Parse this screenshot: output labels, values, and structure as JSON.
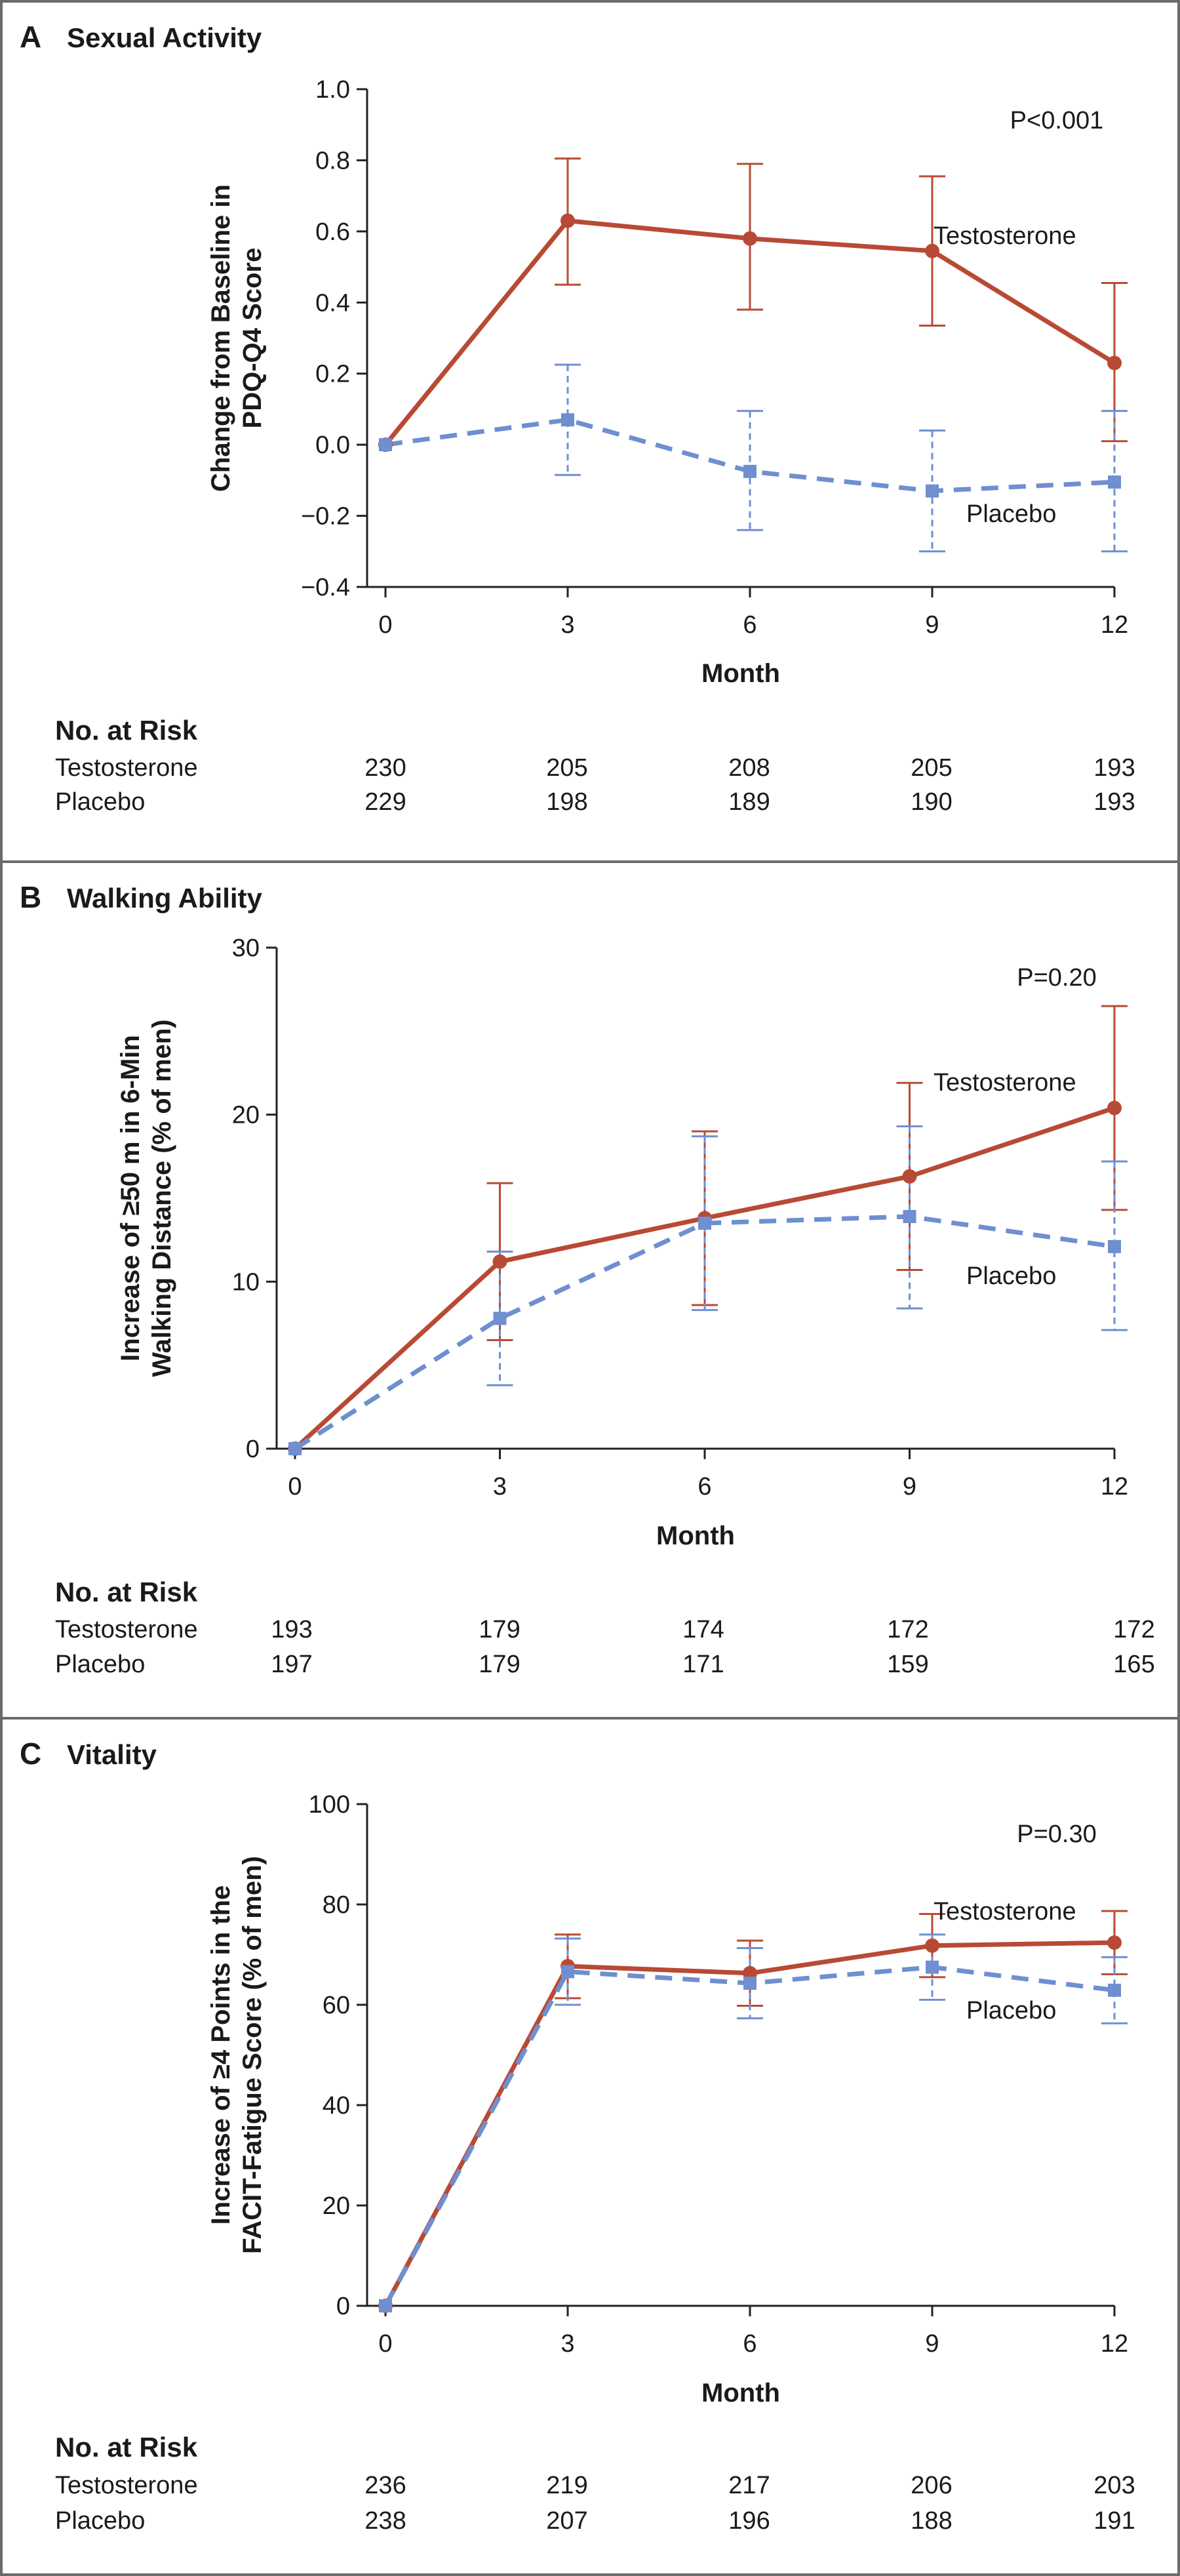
{
  "colors": {
    "testosterone": "#b84a35",
    "placebo": "#6e8fd0",
    "axis": "#222222",
    "frame": "#6b6b6b"
  },
  "chart_data": [
    {
      "type": "line",
      "panel_label": "A",
      "title": "Sexual Activity",
      "ylabel_lines": [
        "Change from Baseline in",
        "PDQ-Q4 Score"
      ],
      "xlabel": "Month",
      "x": [
        0,
        3,
        6,
        9,
        12
      ],
      "x_ticks": [
        "0",
        "3",
        "6",
        "9",
        "12"
      ],
      "ylim": [
        -0.4,
        1.0
      ],
      "y_ticks": [
        -0.4,
        -0.2,
        0.0,
        0.2,
        0.4,
        0.6,
        0.8,
        1.0
      ],
      "y_tick_labels": [
        "−0.4",
        "−0.2",
        "0.0",
        "0.2",
        "0.4",
        "0.6",
        "0.8",
        "1.0"
      ],
      "p_value": "P<0.001",
      "series": [
        {
          "name": "Testosterone",
          "label": "Testosterone",
          "style": "solid",
          "marker": "circle",
          "values": [
            0.0,
            0.63,
            0.58,
            0.545,
            0.23
          ],
          "err_low": [
            null,
            0.45,
            0.38,
            0.335,
            0.01
          ],
          "err_high": [
            null,
            0.805,
            0.79,
            0.755,
            0.455
          ]
        },
        {
          "name": "Placebo",
          "label": "Placebo",
          "style": "dashed",
          "marker": "square",
          "values": [
            0.0,
            0.07,
            -0.075,
            -0.13,
            -0.105
          ],
          "err_low": [
            null,
            -0.085,
            -0.24,
            -0.3,
            -0.3
          ],
          "err_high": [
            null,
            0.225,
            0.095,
            0.04,
            0.095
          ]
        }
      ],
      "risk": {
        "header": "No. at Risk",
        "rows": [
          {
            "name": "Testosterone",
            "values": [
              "230",
              "205",
              "208",
              "205",
              "193"
            ]
          },
          {
            "name": "Placebo",
            "values": [
              "229",
              "198",
              "189",
              "190",
              "193"
            ]
          }
        ]
      }
    },
    {
      "type": "line",
      "panel_label": "B",
      "title": "Walking Ability",
      "ylabel_lines": [
        "Increase of ≥50 m in 6-Min",
        "Walking Distance (% of men)"
      ],
      "xlabel": "Month",
      "x": [
        0,
        3,
        6,
        9,
        12
      ],
      "x_ticks": [
        "0",
        "3",
        "6",
        "9",
        "12"
      ],
      "ylim": [
        0,
        30
      ],
      "y_ticks": [
        0,
        10,
        20,
        30
      ],
      "y_tick_labels": [
        "0",
        "10",
        "20",
        "30"
      ],
      "p_value": "P=0.20",
      "series": [
        {
          "name": "Testosterone",
          "label": "Testosterone",
          "style": "solid",
          "marker": "circle",
          "values": [
            0.0,
            11.2,
            13.8,
            16.3,
            20.4
          ],
          "err_low": [
            null,
            6.5,
            8.6,
            10.7,
            14.3
          ],
          "err_high": [
            null,
            15.9,
            19.0,
            21.9,
            26.5
          ]
        },
        {
          "name": "Placebo",
          "label": "Placebo",
          "style": "dashed",
          "marker": "square",
          "values": [
            0.0,
            7.8,
            13.5,
            13.9,
            12.1
          ],
          "err_low": [
            null,
            3.8,
            8.3,
            8.4,
            7.1
          ],
          "err_high": [
            null,
            11.8,
            18.7,
            19.3,
            17.2
          ]
        }
      ],
      "risk": {
        "header": "No. at Risk",
        "rows": [
          {
            "name": "Testosterone",
            "values": [
              "193",
              "179",
              "174",
              "172",
              "172"
            ]
          },
          {
            "name": "Placebo",
            "values": [
              "197",
              "179",
              "171",
              "159",
              "165"
            ]
          }
        ]
      }
    },
    {
      "type": "line",
      "panel_label": "C",
      "title": "Vitality",
      "ylabel_lines": [
        "Increase of ≥4 Points in the",
        "FACIT-Fatigue Score (% of men)"
      ],
      "xlabel": "Month",
      "x": [
        0,
        3,
        6,
        9,
        12
      ],
      "x_ticks": [
        "0",
        "3",
        "6",
        "9",
        "12"
      ],
      "ylim": [
        0,
        100
      ],
      "y_ticks": [
        0,
        20,
        40,
        60,
        80,
        100
      ],
      "y_tick_labels": [
        "0",
        "20",
        "40",
        "60",
        "80",
        "100"
      ],
      "p_value": "P=0.30",
      "series": [
        {
          "name": "Testosterone",
          "label": "Testosterone",
          "style": "solid",
          "marker": "circle",
          "values": [
            0.0,
            67.7,
            66.3,
            71.8,
            72.4
          ],
          "err_low": [
            null,
            61.3,
            59.8,
            65.5,
            66.1
          ],
          "err_high": [
            null,
            74.0,
            72.8,
            78.1,
            78.7
          ]
        },
        {
          "name": "Placebo",
          "label": "Placebo",
          "style": "dashed",
          "marker": "square",
          "values": [
            0.0,
            66.6,
            64.3,
            67.5,
            62.9
          ],
          "err_low": [
            null,
            60.0,
            57.3,
            61.0,
            56.3
          ],
          "err_high": [
            null,
            73.2,
            71.3,
            74.0,
            69.5
          ]
        }
      ],
      "risk": {
        "header": "No. at Risk",
        "rows": [
          {
            "name": "Testosterone",
            "values": [
              "236",
              "219",
              "217",
              "206",
              "203"
            ]
          },
          {
            "name": "Placebo",
            "values": [
              "238",
              "207",
              "196",
              "188",
              "191"
            ]
          }
        ]
      }
    }
  ]
}
